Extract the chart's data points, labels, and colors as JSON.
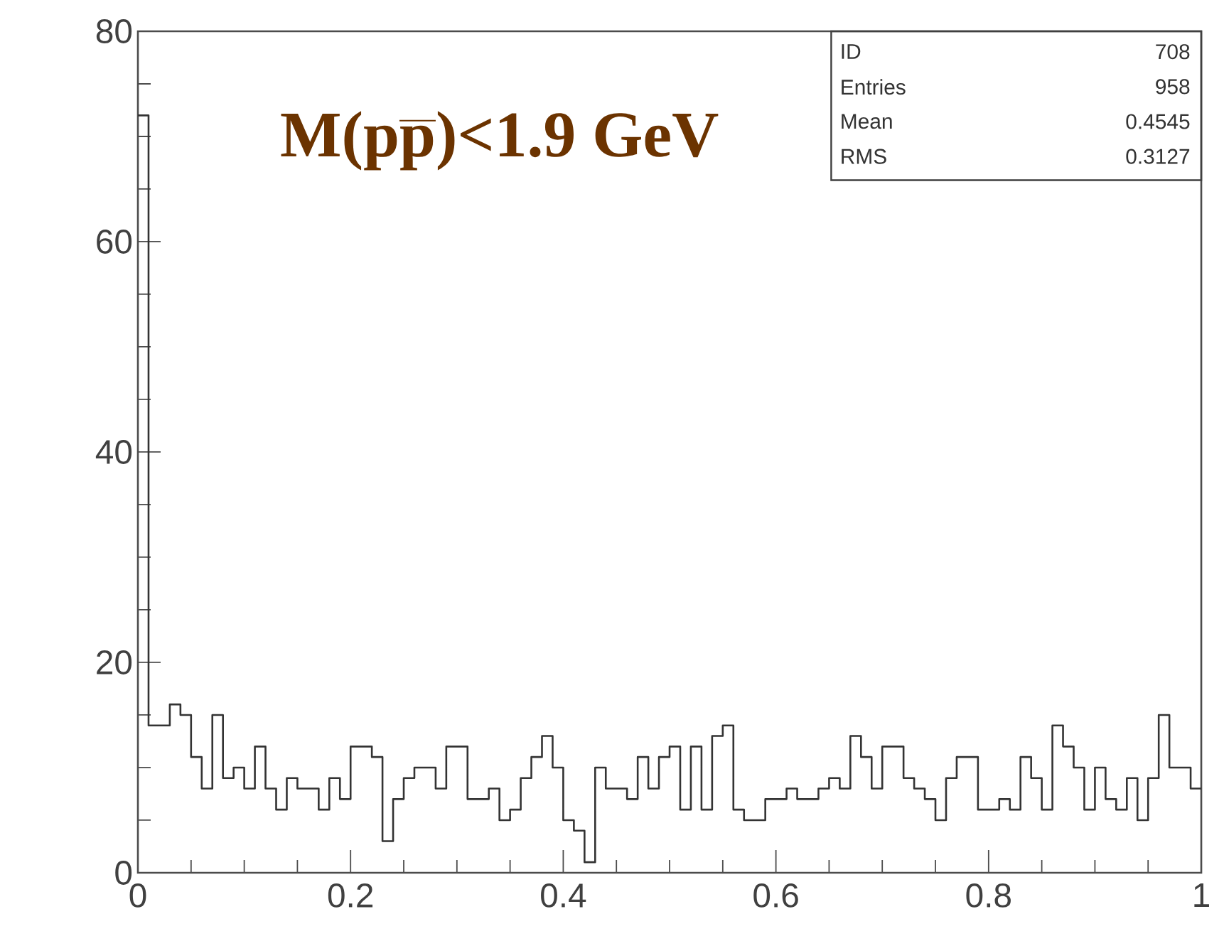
{
  "chart_data": {
    "type": "histogram",
    "title": "\\text{M(p}\\overline{\\text{p}}\\text{)<1.9 GeV}",
    "bins": [
      0,
      0.01,
      0.02,
      0.03,
      0.04,
      0.05,
      0.06,
      0.07,
      0.08,
      0.09,
      0.1,
      0.11,
      0.12,
      0.13,
      0.14,
      0.15,
      0.16,
      0.17,
      0.18,
      0.19,
      0.2,
      0.21,
      0.22,
      0.23,
      0.24,
      0.25,
      0.26,
      0.27,
      0.28,
      0.29,
      0.3,
      0.31,
      0.32,
      0.33,
      0.34,
      0.35,
      0.36,
      0.37,
      0.38,
      0.39,
      0.4,
      0.41,
      0.42,
      0.43,
      0.44,
      0.45,
      0.46,
      0.47,
      0.48,
      0.49,
      0.5,
      0.51,
      0.52,
      0.53,
      0.54,
      0.55,
      0.56,
      0.57,
      0.58,
      0.59,
      0.6,
      0.61,
      0.62,
      0.63,
      0.64,
      0.65,
      0.66,
      0.67,
      0.68,
      0.69,
      0.7,
      0.71,
      0.72,
      0.73,
      0.74,
      0.75,
      0.76,
      0.77,
      0.78,
      0.79,
      0.8,
      0.81,
      0.82,
      0.83,
      0.84,
      0.85,
      0.86,
      0.87,
      0.88,
      0.89,
      0.9,
      0.91,
      0.92,
      0.93,
      0.94,
      0.95,
      0.96,
      0.97,
      0.98,
      0.99,
      1
    ],
    "values": [
      72,
      14,
      14,
      16,
      15,
      11,
      8,
      15,
      9,
      10,
      8,
      12,
      8,
      6,
      9,
      8,
      8,
      6,
      9,
      7,
      12,
      12,
      11,
      3,
      7,
      9,
      10,
      10,
      8,
      12,
      12,
      7,
      7,
      8,
      5,
      6,
      9,
      11,
      13,
      10,
      5,
      4,
      1,
      10,
      8,
      8,
      7,
      11,
      8,
      11,
      12,
      6,
      12,
      6,
      13,
      14,
      6,
      5,
      5,
      7,
      7,
      8,
      7,
      7,
      8,
      9,
      8,
      13,
      11,
      8,
      12,
      12,
      9,
      8,
      7,
      5,
      9,
      11,
      11,
      6,
      6,
      7,
      6,
      11,
      9,
      6,
      14,
      12,
      10,
      6,
      10,
      7,
      6,
      9,
      5,
      9,
      15,
      10,
      10,
      8
    ],
    "color": "#333333",
    "xlim": [
      0,
      1
    ],
    "ylim": [
      0,
      80
    ],
    "xticks": [
      0,
      0.2,
      0.4,
      0.6,
      0.8,
      1
    ],
    "yticks": [
      0,
      20,
      40,
      60,
      80
    ],
    "grid": false,
    "annotations": [
      "ID",
      "708",
      "Entries",
      "958",
      "Mean",
      "0.4545",
      "RMS",
      "0.3127"
    ]
  }
}
